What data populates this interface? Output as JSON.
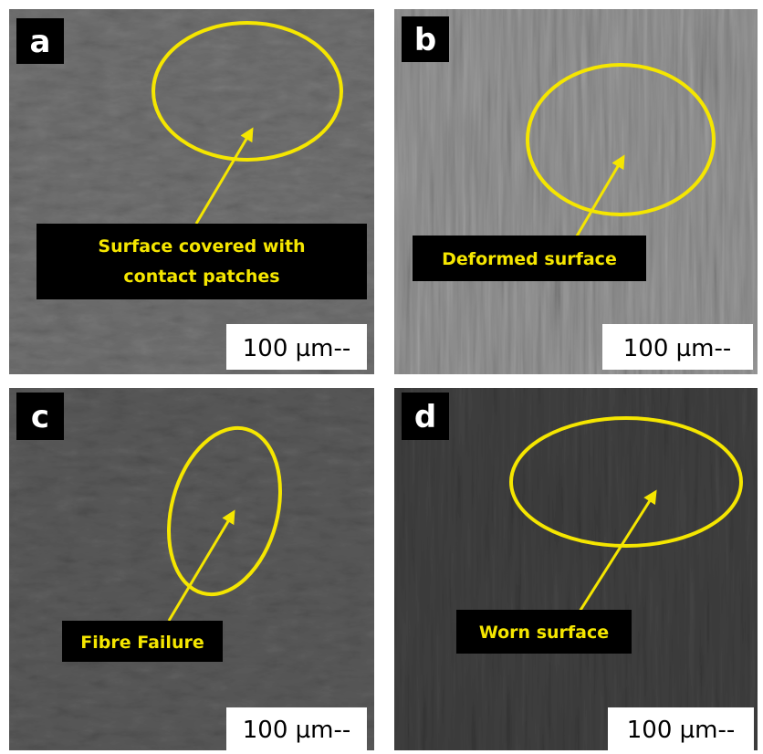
{
  "panels": [
    {
      "label": "a",
      "annotation": [
        "Surface covered with",
        "contact patches"
      ],
      "scale_bar": "100 µm--"
    },
    {
      "label": "b",
      "annotation": [
        "Deformed surface"
      ],
      "scale_bar": "100 µm--"
    },
    {
      "label": "c",
      "annotation": [
        "Fibre Failure"
      ],
      "scale_bar": "100 µm--"
    },
    {
      "label": "d",
      "annotation": [
        "Worn surface"
      ],
      "scale_bar": "100 µm--"
    }
  ]
}
